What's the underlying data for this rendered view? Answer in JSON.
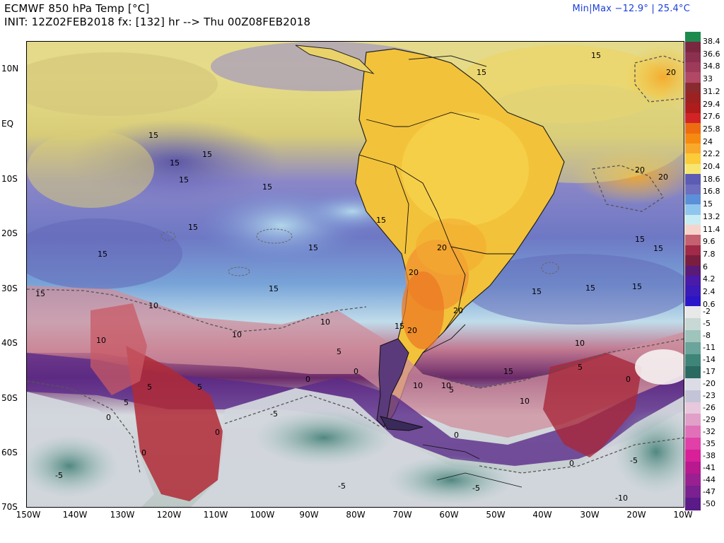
{
  "header": {
    "title": "ECMWF 850 hPa Temp [°C]",
    "init": "INIT: 12Z02FEB2018 fx: [132] hr --> Thu 00Z08FEB2018",
    "minmax": "Min|Max −12.9° | 25.4°C"
  },
  "map": {
    "lat_labels": [
      "10N",
      "EQ",
      "10S",
      "20S",
      "30S",
      "40S",
      "50S",
      "60S",
      "70S"
    ],
    "lon_labels": [
      "150W",
      "140W",
      "130W",
      "120W",
      "110W",
      "100W",
      "90W",
      "80W",
      "70W",
      "60W",
      "50W",
      "40W",
      "30W",
      "20W",
      "10W"
    ],
    "contours": [
      {
        "t": "15",
        "key": "15a"
      },
      {
        "t": "15",
        "key": "15b"
      },
      {
        "t": "15",
        "key": "15c"
      },
      {
        "t": "15",
        "key": "15d"
      },
      {
        "t": "15",
        "key": "15e"
      },
      {
        "t": "15",
        "key": "15f"
      },
      {
        "t": "15",
        "key": "15g"
      },
      {
        "t": "15",
        "key": "15h"
      },
      {
        "t": "15",
        "key": "15i"
      },
      {
        "t": "15",
        "key": "15j"
      },
      {
        "t": "15",
        "key": "15k"
      },
      {
        "t": "15",
        "key": "15l"
      },
      {
        "t": "15",
        "key": "15m"
      },
      {
        "t": "15",
        "key": "15n"
      },
      {
        "t": "15",
        "key": "15o"
      },
      {
        "t": "15",
        "key": "15p"
      },
      {
        "t": "15",
        "key": "15q"
      },
      {
        "t": "15",
        "key": "15r"
      },
      {
        "t": "15",
        "key": "15s"
      },
      {
        "t": "15",
        "key": "15t"
      },
      {
        "t": "20",
        "key": "20a"
      },
      {
        "t": "20",
        "key": "20b"
      },
      {
        "t": "20",
        "key": "20c"
      },
      {
        "t": "20",
        "key": "20d"
      },
      {
        "t": "20",
        "key": "20e"
      },
      {
        "t": "20",
        "key": "20f"
      },
      {
        "t": "20",
        "key": "20g"
      },
      {
        "t": "10",
        "key": "10a"
      },
      {
        "t": "10",
        "key": "10b"
      },
      {
        "t": "10",
        "key": "10c"
      },
      {
        "t": "10",
        "key": "10d"
      },
      {
        "t": "10",
        "key": "10e"
      },
      {
        "t": "10",
        "key": "10f"
      },
      {
        "t": "10",
        "key": "10g"
      },
      {
        "t": "10",
        "key": "10h"
      },
      {
        "t": "5",
        "key": "5a"
      },
      {
        "t": "5",
        "key": "5b"
      },
      {
        "t": "5",
        "key": "5c"
      },
      {
        "t": "5",
        "key": "5d"
      },
      {
        "t": "5",
        "key": "5e"
      },
      {
        "t": "5",
        "key": "5f"
      },
      {
        "t": "0",
        "key": "0a"
      },
      {
        "t": "0",
        "key": "0b"
      },
      {
        "t": "0",
        "key": "0c"
      },
      {
        "t": "0",
        "key": "0d"
      },
      {
        "t": "0",
        "key": "0e"
      },
      {
        "t": "0",
        "key": "0f"
      },
      {
        "t": "0",
        "key": "0g"
      },
      {
        "t": "0",
        "key": "0h"
      },
      {
        "t": "-5",
        "key": "m5a"
      },
      {
        "t": "-5",
        "key": "m5b"
      },
      {
        "t": "-5",
        "key": "m5c"
      },
      {
        "t": "-5",
        "key": "m5d"
      },
      {
        "t": "-5",
        "key": "m5e"
      },
      {
        "t": "-10",
        "key": "m10a"
      }
    ]
  },
  "legend": {
    "upper_labels": [
      "38.4",
      "36.6",
      "34.8",
      "33",
      "31.2",
      "29.4",
      "27.6",
      "25.8",
      "24",
      "22.2",
      "20.4",
      "18.6",
      "16.8",
      "15",
      "13.2",
      "11.4",
      "9.6",
      "7.8",
      "6",
      "4.2",
      "2.4",
      "0.6"
    ],
    "lower_labels": [
      "-2",
      "-5",
      "-8",
      "-11",
      "-14",
      "-17",
      "-20",
      "-23",
      "-26",
      "-29",
      "-32",
      "-35",
      "-38",
      "-41",
      "-44",
      "-47",
      "-50"
    ],
    "upper_colors": [
      "#1e8b4e",
      "#7a2840",
      "#8c3050",
      "#9e3a5a",
      "#b04866",
      "#8a2a2e",
      "#9c2222",
      "#b01c1c",
      "#d22424",
      "#ee6c10",
      "#f68a10",
      "#f9a92a",
      "#fbcb3a",
      "#f6e670",
      "#5c5cb4",
      "#6e6ec0",
      "#5b8fd8",
      "#8fc6ee",
      "#c8ecf4",
      "#f6d4cc",
      "#c46070",
      "#a02a48",
      "#7a1e40",
      "#5a1a78",
      "#4a1aa8",
      "#3a1ab8",
      "#2a16c8"
    ],
    "lower_colors": [
      "#e8e8e8",
      "#c8d8d4",
      "#9ec4bc",
      "#6aa49a",
      "#3e8478",
      "#2a6a60",
      "#dcdce6",
      "#c4c4d8",
      "#e8c8dc",
      "#e0a0c8",
      "#e070b8",
      "#e040a8",
      "#d82098",
      "#b81890",
      "#982090",
      "#7a2090",
      "#5a1a88"
    ]
  }
}
